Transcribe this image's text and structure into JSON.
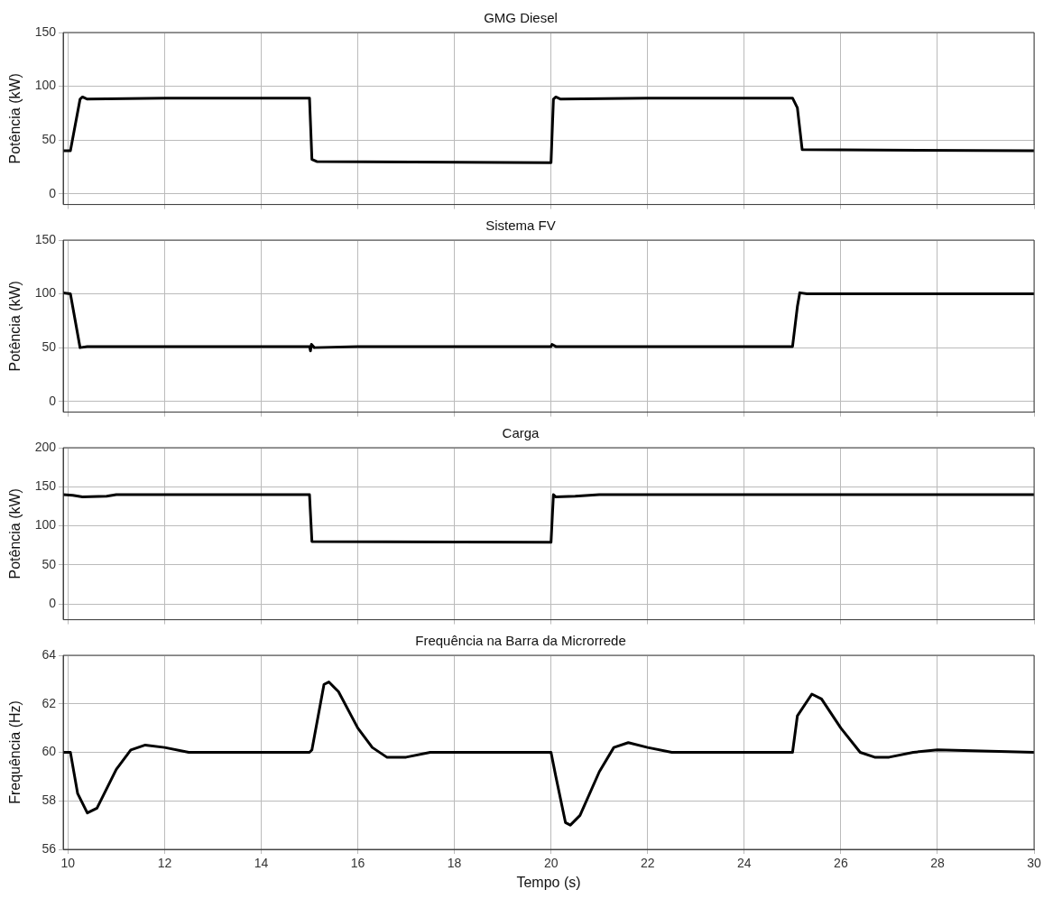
{
  "chart_data": [
    {
      "type": "line",
      "title": "GMG Diesel",
      "ylabel": "Potência (kW)",
      "xlim": [
        9.9,
        30
      ],
      "xticks": [
        10,
        12,
        14,
        16,
        18,
        20,
        22,
        24,
        26,
        28,
        30
      ],
      "ylim": [
        -10,
        150
      ],
      "yticks": [
        0,
        50,
        100,
        150
      ],
      "grid": true,
      "tick_labels": "y",
      "x": [
        9.9,
        10.05,
        10.25,
        10.3,
        10.4,
        12,
        15,
        15.05,
        15.15,
        20,
        20.05,
        20.1,
        20.2,
        22,
        25,
        25.1,
        25.2,
        30
      ],
      "series": [
        {
          "color": "#000000",
          "values": [
            40,
            40,
            88,
            90,
            88,
            89,
            89,
            32,
            30,
            29,
            88,
            90,
            88,
            89,
            89,
            80,
            41,
            40
          ]
        }
      ]
    },
    {
      "type": "line",
      "title": "Sistema FV",
      "ylabel": "Potência (kW)",
      "xlim": [
        9.9,
        30
      ],
      "xticks": [
        10,
        12,
        14,
        16,
        18,
        20,
        22,
        24,
        26,
        28,
        30
      ],
      "ylim": [
        -10,
        150
      ],
      "yticks": [
        0,
        50,
        100,
        150
      ],
      "grid": true,
      "tick_labels": "y",
      "x": [
        9.9,
        10.05,
        10.25,
        10.4,
        15,
        15.02,
        15.04,
        15.1,
        16,
        20,
        20.02,
        20.1,
        25,
        25.1,
        25.15,
        25.3,
        30
      ],
      "series": [
        {
          "color": "#000000",
          "values": [
            101,
            100,
            50,
            51,
            51,
            47,
            53,
            50,
            51,
            51,
            53,
            51,
            51,
            88,
            101,
            100,
            100
          ]
        }
      ]
    },
    {
      "type": "line",
      "title": "Carga",
      "ylabel": "Potência (kW)",
      "xlim": [
        9.9,
        30
      ],
      "xticks": [
        10,
        12,
        14,
        16,
        18,
        20,
        22,
        24,
        26,
        28,
        30
      ],
      "ylim": [
        -20,
        200
      ],
      "yticks": [
        0,
        50,
        100,
        150,
        200
      ],
      "grid": true,
      "tick_labels": "y",
      "x": [
        9.9,
        10.1,
        10.3,
        10.8,
        11,
        15,
        15.05,
        20,
        20.05,
        20.1,
        20.5,
        21,
        30
      ],
      "series": [
        {
          "color": "#000000",
          "values": [
            140,
            139,
            137,
            138,
            140,
            140,
            80,
            79,
            140,
            137,
            138,
            140,
            140
          ]
        }
      ]
    },
    {
      "type": "line",
      "title": "Frequência na Barra da Microrrede",
      "xlabel": "Tempo (s)",
      "ylabel": "Frequência (Hz)",
      "xlim": [
        9.9,
        30
      ],
      "xticks": [
        10,
        12,
        14,
        16,
        18,
        20,
        22,
        24,
        26,
        28,
        30
      ],
      "ylim": [
        56,
        64
      ],
      "yticks": [
        56,
        58,
        60,
        62,
        64
      ],
      "grid": true,
      "x": [
        9.9,
        10.05,
        10.2,
        10.4,
        10.6,
        11,
        11.3,
        11.6,
        12,
        12.5,
        15,
        15.05,
        15.3,
        15.4,
        15.6,
        16,
        16.3,
        16.6,
        17,
        17.5,
        18,
        20,
        20.1,
        20.3,
        20.4,
        20.6,
        21,
        21.3,
        21.6,
        22,
        22.5,
        25,
        25.1,
        25.4,
        25.6,
        26,
        26.4,
        26.7,
        27,
        27.5,
        28,
        30
      ],
      "series": [
        {
          "color": "#000000",
          "values": [
            60,
            60,
            58.3,
            57.5,
            57.7,
            59.3,
            60.1,
            60.3,
            60.2,
            60,
            60,
            60.1,
            62.8,
            62.9,
            62.5,
            61,
            60.2,
            59.8,
            59.8,
            60,
            60,
            60,
            59,
            57.1,
            57,
            57.4,
            59.2,
            60.2,
            60.4,
            60.2,
            60,
            60,
            61.5,
            62.4,
            62.2,
            61,
            60,
            59.8,
            59.8,
            60,
            60.1,
            60
          ]
        }
      ]
    }
  ]
}
